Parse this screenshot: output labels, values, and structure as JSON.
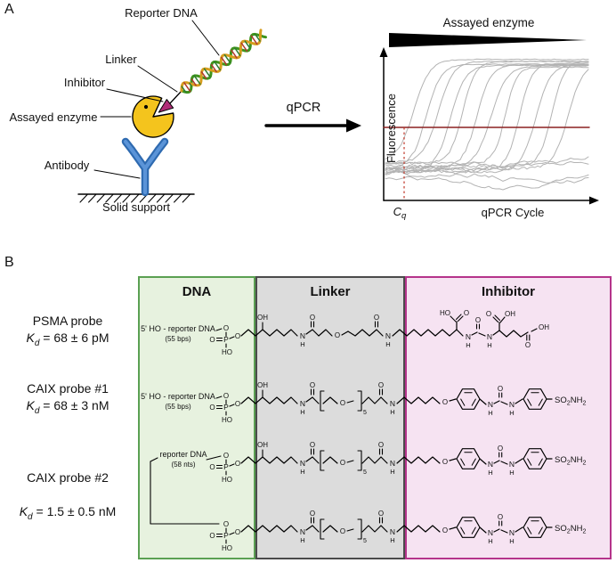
{
  "panel_a": {
    "label": "A",
    "schematic": {
      "reporter_dna": "Reporter DNA",
      "linker": "Linker",
      "inhibitor": "Inhibitor",
      "assayed_enzyme": "Assayed enzyme",
      "antibody": "Antibody",
      "solid_support": "Solid support"
    },
    "reaction_arrow_label": "qPCR",
    "plot": {
      "title": "Assayed enzyme",
      "y_axis": "Fluorescence",
      "x_axis": "qPCR Cycle",
      "cq_symbol": "C",
      "cq_sub": "q"
    }
  },
  "chart_data": {
    "type": "line",
    "title": "Assayed enzyme",
    "xlabel": "qPCR Cycle",
    "ylabel": "Fluorescence",
    "legend": "none",
    "description": "Schematic qPCR amplification curves; decreasing enzyme amount (black wedge) shifts curves to later cycles. Dark-red horizontal line = fluorescence threshold; dotted red vertical line marks Cq of the earliest curve; several flat noisy traces show no amplification.",
    "amplification_midpoints_frac": [
      0.14,
      0.2,
      0.26,
      0.32,
      0.38,
      0.45,
      0.52,
      0.59,
      0.66,
      0.74,
      0.82,
      0.9
    ],
    "flat_series": 4,
    "threshold_frac_y": 0.47,
    "cq_frac_x": 0.09,
    "curve_color": "#b3b3b3",
    "threshold_color": "#8b2121",
    "cq_line_color": "#c0392b"
  },
  "colors": {
    "enzyme": "#f4c41d",
    "antibody": "#5b94d8",
    "antibody_outline": "#2e6ab0",
    "inhibitor_wedge": "#b02d78",
    "dna_strand_green": "#3e941c",
    "dna_strand_gold": "#d79d1e",
    "dna_rung_red": "#b03a2e",
    "dna_rung_green": "#2e7d32"
  },
  "panel_b": {
    "label": "B",
    "kd_symbol": "K",
    "kd_sub": "d",
    "columns": [
      {
        "label": "DNA",
        "fill": "#e7f2df",
        "border": "#5ba052"
      },
      {
        "label": "Linker",
        "fill": "#dcdcdc",
        "border": "#4a4a4a"
      },
      {
        "label": "Inhibitor",
        "fill": "#f6e3f2",
        "border": "#b5348b"
      }
    ],
    "probes": [
      {
        "name": "PSMA probe",
        "kd_value": " = 68 ± 6 pM",
        "dna_label": "5' HO - reporter DNA",
        "dna_sublabel": "(55 bps)"
      },
      {
        "name": "CAIX probe #1",
        "kd_value": " = 68 ± 3 nM",
        "dna_label": "5' HO - reporter DNA",
        "dna_sublabel": "(55 bps)"
      },
      {
        "name": "CAIX probe #2",
        "kd_value": " = 1.5 ± 0.5 nM",
        "dna_label": "reporter DNA",
        "dna_sublabel": "(58 nts)"
      }
    ],
    "chemistry": {
      "atoms": {
        "O": "O",
        "P": "P",
        "N": "N",
        "H": "H",
        "OH": "OH",
        "HO": "HO"
      },
      "peg_subscript": "5",
      "sulfonamide": [
        "SO",
        "2",
        "NH",
        "2"
      ]
    }
  }
}
